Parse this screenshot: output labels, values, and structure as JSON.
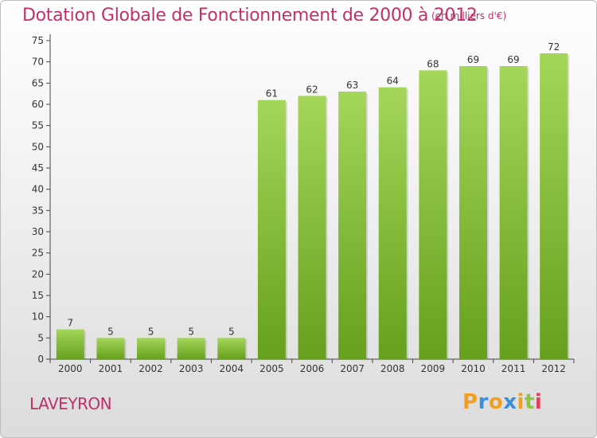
{
  "chart_data": {
    "type": "bar",
    "title": "Dotation Globale de Fonctionnement de 2000 à 2012",
    "subtitle": "(en milliers d'€)",
    "categories": [
      "2000",
      "2001",
      "2002",
      "2003",
      "2004",
      "2005",
      "2006",
      "2007",
      "2008",
      "2009",
      "2010",
      "2011",
      "2012"
    ],
    "values": [
      7,
      5,
      5,
      5,
      5,
      61,
      62,
      63,
      64,
      68,
      69,
      69,
      72
    ],
    "ylim": [
      0,
      75
    ],
    "yticks": [
      0,
      5,
      10,
      15,
      20,
      25,
      30,
      35,
      40,
      45,
      50,
      55,
      60,
      65,
      70,
      75
    ],
    "grid": false,
    "bar_color_top": "#a4d65a",
    "bar_color_bottom": "#66a01c"
  },
  "commune": "LAVEYRON",
  "logo": {
    "text": "Proxiti",
    "letters": [
      {
        "char": "P",
        "color": "#f0a020"
      },
      {
        "char": "r",
        "color": "#3a8fd8"
      },
      {
        "char": "o",
        "color": "#f0a020"
      },
      {
        "char": "x",
        "color": "#3a8fd8"
      },
      {
        "char": "i",
        "color": "#f0a020"
      },
      {
        "char": "t",
        "color": "#8bc34a"
      },
      {
        "char": "i",
        "color": "#e0405a"
      }
    ]
  },
  "colors": {
    "title": "#c0306a",
    "axis_text": "#333333"
  }
}
